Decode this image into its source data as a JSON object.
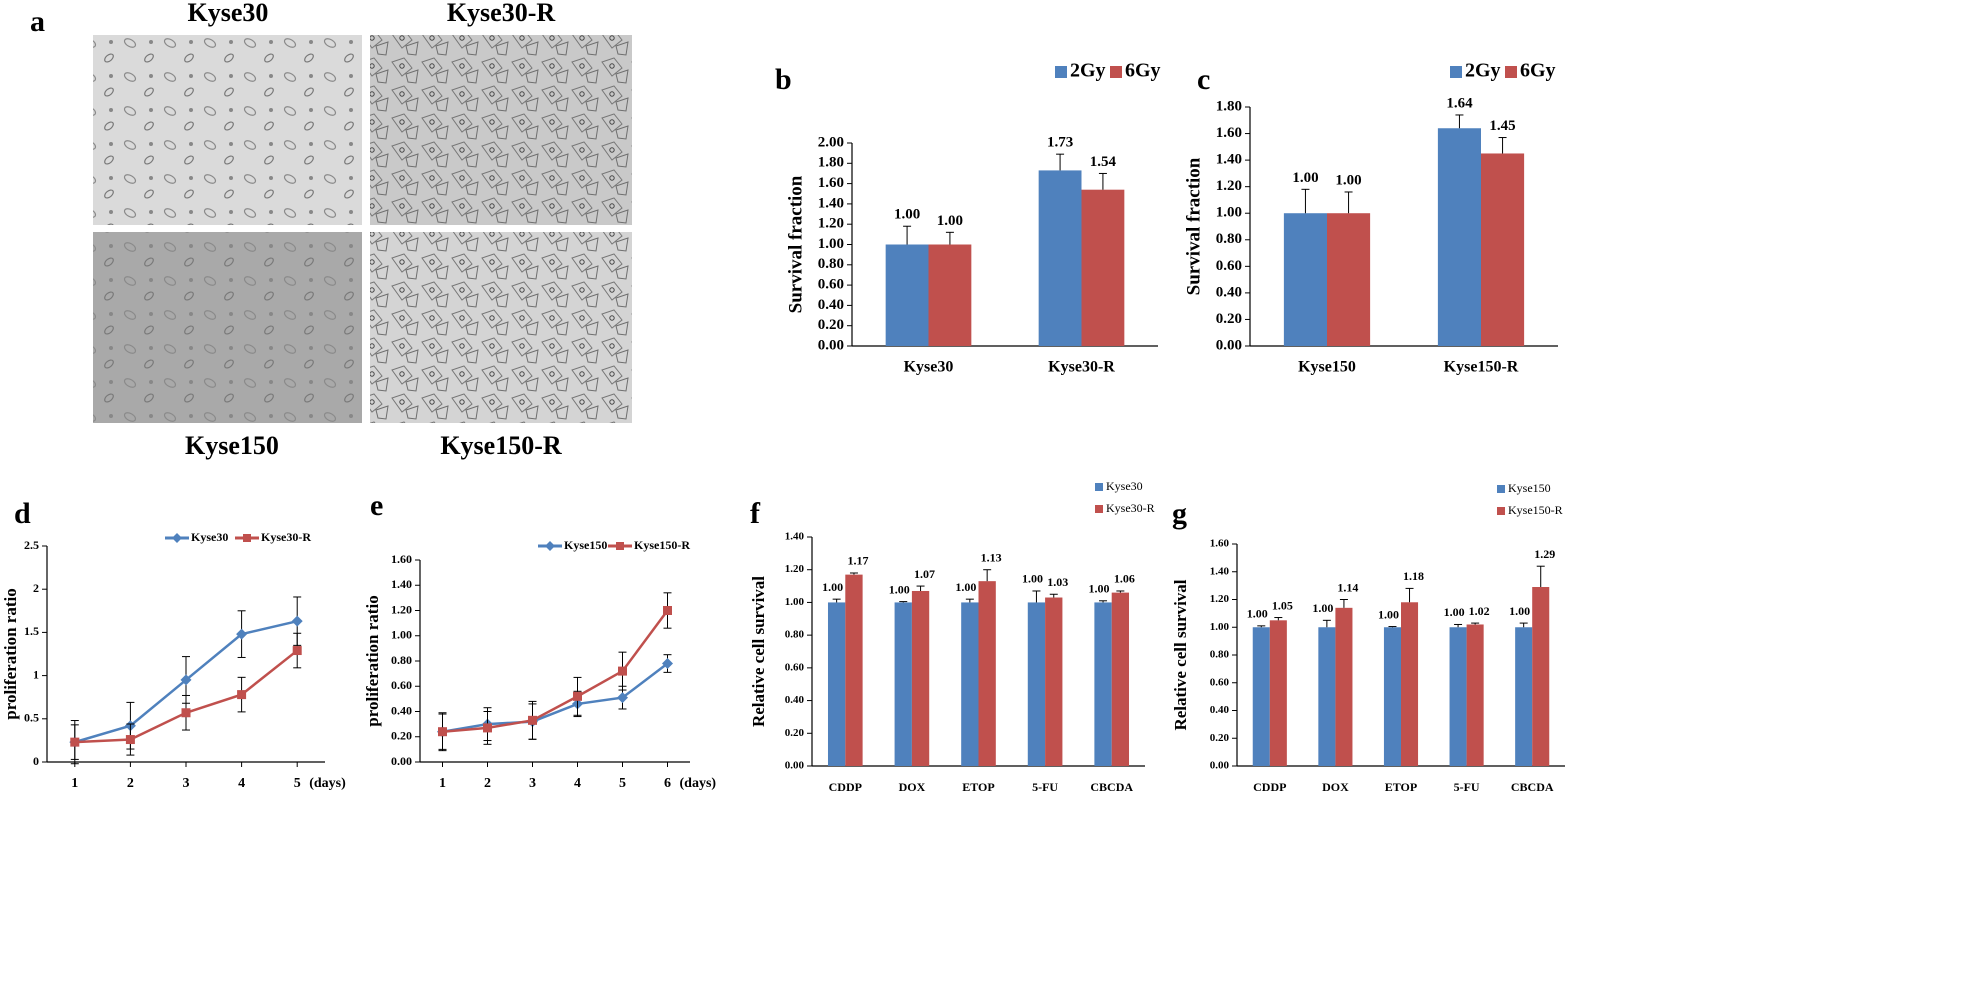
{
  "figure_a": {
    "panel": "a",
    "images": [
      {
        "label": "Kyse30"
      },
      {
        "label": "Kyse30-R"
      },
      {
        "label": "Kyse150"
      },
      {
        "label": "Kyse150-R"
      }
    ]
  },
  "chart_data": [
    {
      "type": "bar",
      "panel": "b",
      "ylabel": "Survival fraction",
      "categories": [
        "Kyse30",
        "Kyse30-R"
      ],
      "series": [
        {
          "name": "2Gy",
          "color": "#4f81bd",
          "values": [
            1.0,
            1.73
          ],
          "errors": [
            0.18,
            0.16
          ],
          "value_labels": [
            "1.00",
            "1.73"
          ]
        },
        {
          "name": "6Gy",
          "color": "#c0504d",
          "values": [
            1.0,
            1.54
          ],
          "errors": [
            0.12,
            0.16
          ],
          "value_labels": [
            "1.00",
            "1.54"
          ]
        }
      ],
      "ylim": [
        0,
        2
      ],
      "yticks": [
        {
          "value": 0,
          "label": "0.00"
        },
        {
          "value": 0.2,
          "label": "0.20"
        },
        {
          "value": 0.4,
          "label": "0.40"
        },
        {
          "value": 0.6,
          "label": "0.60"
        },
        {
          "value": 0.8,
          "label": "0.80"
        },
        {
          "value": 1,
          "label": "1.00"
        },
        {
          "value": 1.2,
          "label": "1.20"
        },
        {
          "value": 1.4,
          "label": "1.40"
        },
        {
          "value": 1.6,
          "label": "1.60"
        },
        {
          "value": 1.8,
          "label": "1.80"
        },
        {
          "value": 2,
          "label": "2.00"
        }
      ],
      "legend": "top",
      "error_bars": "plus"
    },
    {
      "type": "bar",
      "panel": "c",
      "ylabel": "Survival fraction",
      "categories": [
        "Kyse150",
        "Kyse150-R"
      ],
      "series": [
        {
          "name": "2Gy",
          "color": "#4f81bd",
          "values": [
            1.0,
            1.64
          ],
          "errors": [
            0.18,
            0.1
          ],
          "value_labels": [
            "1.00",
            "1.64"
          ]
        },
        {
          "name": "6Gy",
          "color": "#c0504d",
          "values": [
            1.0,
            1.45
          ],
          "errors": [
            0.16,
            0.12
          ],
          "value_labels": [
            "1.00",
            "1.45"
          ]
        }
      ],
      "ylim": [
        0,
        1.8
      ],
      "yticks": [
        {
          "value": 0,
          "label": "0.00"
        },
        {
          "value": 0.2,
          "label": "0.20"
        },
        {
          "value": 0.4,
          "label": "0.40"
        },
        {
          "value": 0.6,
          "label": "0.60"
        },
        {
          "value": 0.8,
          "label": "0.80"
        },
        {
          "value": 1,
          "label": "1.00"
        },
        {
          "value": 1.2,
          "label": "1.20"
        },
        {
          "value": 1.4,
          "label": "1.40"
        },
        {
          "value": 1.6,
          "label": "1.60"
        },
        {
          "value": 1.8,
          "label": "1.80"
        }
      ],
      "legend": "top",
      "error_bars": "plus"
    },
    {
      "type": "line",
      "panel": "d",
      "ylabel": "proliferation ratio",
      "xlabel": "(days)",
      "categories": [
        "1",
        "2",
        "3",
        "4",
        "5"
      ],
      "series": [
        {
          "name": "Kyse30",
          "color": "#4f81bd",
          "marker": "diamond",
          "values": [
            0.23,
            0.42,
            0.95,
            1.48,
            1.63
          ],
          "errors": [
            0.25,
            0.27,
            0.27,
            0.27,
            0.28
          ]
        },
        {
          "name": "Kyse30-R",
          "color": "#c0504d",
          "marker": "square",
          "values": [
            0.23,
            0.26,
            0.57,
            0.78,
            1.29
          ],
          "errors": [
            0.2,
            0.18,
            0.2,
            0.2,
            0.2
          ]
        }
      ],
      "ylim": [
        0,
        2.5
      ],
      "yticks": [
        0,
        0.5,
        1,
        1.5,
        2,
        2.5
      ],
      "legend": "top",
      "error_bars": "both"
    },
    {
      "type": "line",
      "panel": "e",
      "ylabel": "proliferation ratio",
      "xlabel": "(days)",
      "categories": [
        "1",
        "2",
        "3",
        "4",
        "5",
        "6"
      ],
      "series": [
        {
          "name": "Kyse150",
          "color": "#4f81bd",
          "marker": "diamond",
          "values": [
            0.24,
            0.3,
            0.32,
            0.46,
            0.51,
            0.78
          ],
          "errors": [
            0.14,
            0.13,
            0.14,
            0.1,
            0.09,
            0.07
          ]
        },
        {
          "name": "Kyse150-R",
          "color": "#c0504d",
          "marker": "square",
          "values": [
            0.24,
            0.27,
            0.33,
            0.52,
            0.72,
            1.2
          ],
          "errors": [
            0.15,
            0.13,
            0.15,
            0.15,
            0.15,
            0.14
          ]
        }
      ],
      "ylim": [
        0,
        1.6
      ],
      "yticks": [
        {
          "value": 0,
          "label": "0.00"
        },
        {
          "value": 0.2,
          "label": "0.20"
        },
        {
          "value": 0.4,
          "label": "0.40"
        },
        {
          "value": 0.6,
          "label": "0.60"
        },
        {
          "value": 0.8,
          "label": "0.80"
        },
        {
          "value": 1,
          "label": "1.00"
        },
        {
          "value": 1.2,
          "label": "1.20"
        },
        {
          "value": 1.4,
          "label": "1.40"
        },
        {
          "value": 1.6,
          "label": "1.60"
        }
      ],
      "legend": "top",
      "error_bars": "both"
    },
    {
      "type": "bar",
      "panel": "f",
      "ylabel": "Relative cell  survival",
      "categories": [
        "CDDP",
        "DOX",
        "ETOP",
        "5-FU",
        "CBCDA"
      ],
      "series": [
        {
          "name": "Kyse30",
          "color": "#4f81bd",
          "values": [
            1.0,
            1.0,
            1.0,
            1.0,
            1.0
          ],
          "errors": [
            0.02,
            0.005,
            0.02,
            0.07,
            0.01
          ],
          "value_labels": [
            "1.00",
            "1.00",
            "1.00",
            "1.00",
            "1.00"
          ]
        },
        {
          "name": "Kyse30-R",
          "color": "#c0504d",
          "values": [
            1.17,
            1.07,
            1.13,
            1.03,
            1.06
          ],
          "errors": [
            0.01,
            0.03,
            0.07,
            0.02,
            0.01
          ],
          "value_labels": [
            "1.17",
            "1.07",
            "1.13",
            "1.03",
            "1.06"
          ]
        }
      ],
      "ylim": [
        0,
        1.4
      ],
      "yticks": [
        {
          "value": 0,
          "label": "0.00"
        },
        {
          "value": 0.2,
          "label": "0.20"
        },
        {
          "value": 0.4,
          "label": "0.40"
        },
        {
          "value": 0.6,
          "label": "0.60"
        },
        {
          "value": 0.8,
          "label": "0.80"
        },
        {
          "value": 1,
          "label": "1.00"
        },
        {
          "value": 1.2,
          "label": "1.20"
        },
        {
          "value": 1.4,
          "label": "1.40"
        }
      ],
      "legend": "right",
      "error_bars": "plus"
    },
    {
      "type": "bar",
      "panel": "g",
      "ylabel": "Relative cell  survival",
      "categories": [
        "CDDP",
        "DOX",
        "ETOP",
        "5-FU",
        "CBCDA"
      ],
      "series": [
        {
          "name": "Kyse150",
          "color": "#4f81bd",
          "values": [
            1.0,
            1.0,
            1.0,
            1.0,
            1.0
          ],
          "errors": [
            0.01,
            0.05,
            0.005,
            0.02,
            0.03
          ],
          "value_labels": [
            "1.00",
            "1.00",
            "1.00",
            "1.00",
            "1.00"
          ]
        },
        {
          "name": "Kyse150-R",
          "color": "#c0504d",
          "values": [
            1.05,
            1.14,
            1.18,
            1.02,
            1.29
          ],
          "errors": [
            0.02,
            0.06,
            0.1,
            0.01,
            0.15
          ],
          "value_labels": [
            "1.05",
            "1.14",
            "1.18",
            "1.02",
            "1.29"
          ]
        }
      ],
      "ylim": [
        0,
        1.6
      ],
      "yticks": [
        {
          "value": 0,
          "label": "0.00"
        },
        {
          "value": 0.2,
          "label": "0.20"
        },
        {
          "value": 0.4,
          "label": "0.40"
        },
        {
          "value": 0.6,
          "label": "0.60"
        },
        {
          "value": 0.8,
          "label": "0.80"
        },
        {
          "value": 1,
          "label": "1.00"
        },
        {
          "value": 1.2,
          "label": "1.20"
        },
        {
          "value": 1.4,
          "label": "1.40"
        },
        {
          "value": 1.6,
          "label": "1.60"
        }
      ],
      "legend": "right",
      "error_bars": "plus"
    }
  ]
}
